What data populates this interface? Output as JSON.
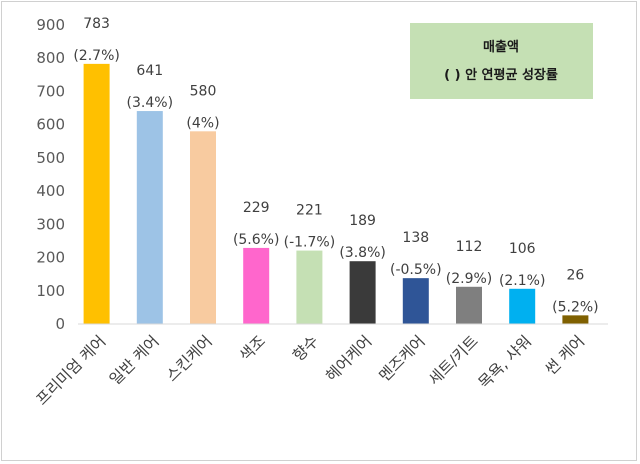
{
  "chart_data": {
    "type": "bar",
    "categories": [
      "프리미엄 케어",
      "일반 케어",
      "스킨케어",
      "색조",
      "향수",
      "헤어케어",
      "멘즈케어",
      "세트/키트",
      "목욕, 샤워",
      "썬 케어"
    ],
    "values": [
      783,
      641,
      580,
      229,
      221,
      189,
      138,
      112,
      106,
      26
    ],
    "growth_labels": [
      "(2.7%)",
      "(3.4%)",
      "(4%)",
      "(5.6%)",
      "(-1.7%)",
      "(3.8%)",
      "(-0.5%)",
      "(2.9%)",
      "(2.1%)",
      "(5.2%)"
    ],
    "colors": [
      "#ffc000",
      "#9dc3e6",
      "#f8cba0",
      "#ff66cc",
      "#c5e0b4",
      "#3a3a3a",
      "#2f5597",
      "#7f7f7f",
      "#00b0f0",
      "#7f6000"
    ],
    "yticks": [
      0,
      100,
      200,
      300,
      400,
      500,
      600,
      700,
      800,
      900
    ],
    "ylim": [
      0,
      900
    ],
    "grid": false,
    "legend": {
      "line1": "매출액",
      "line2": "( ) 안 연평균 성장률",
      "background": "#c5e0b4",
      "placement": "top-right"
    }
  }
}
